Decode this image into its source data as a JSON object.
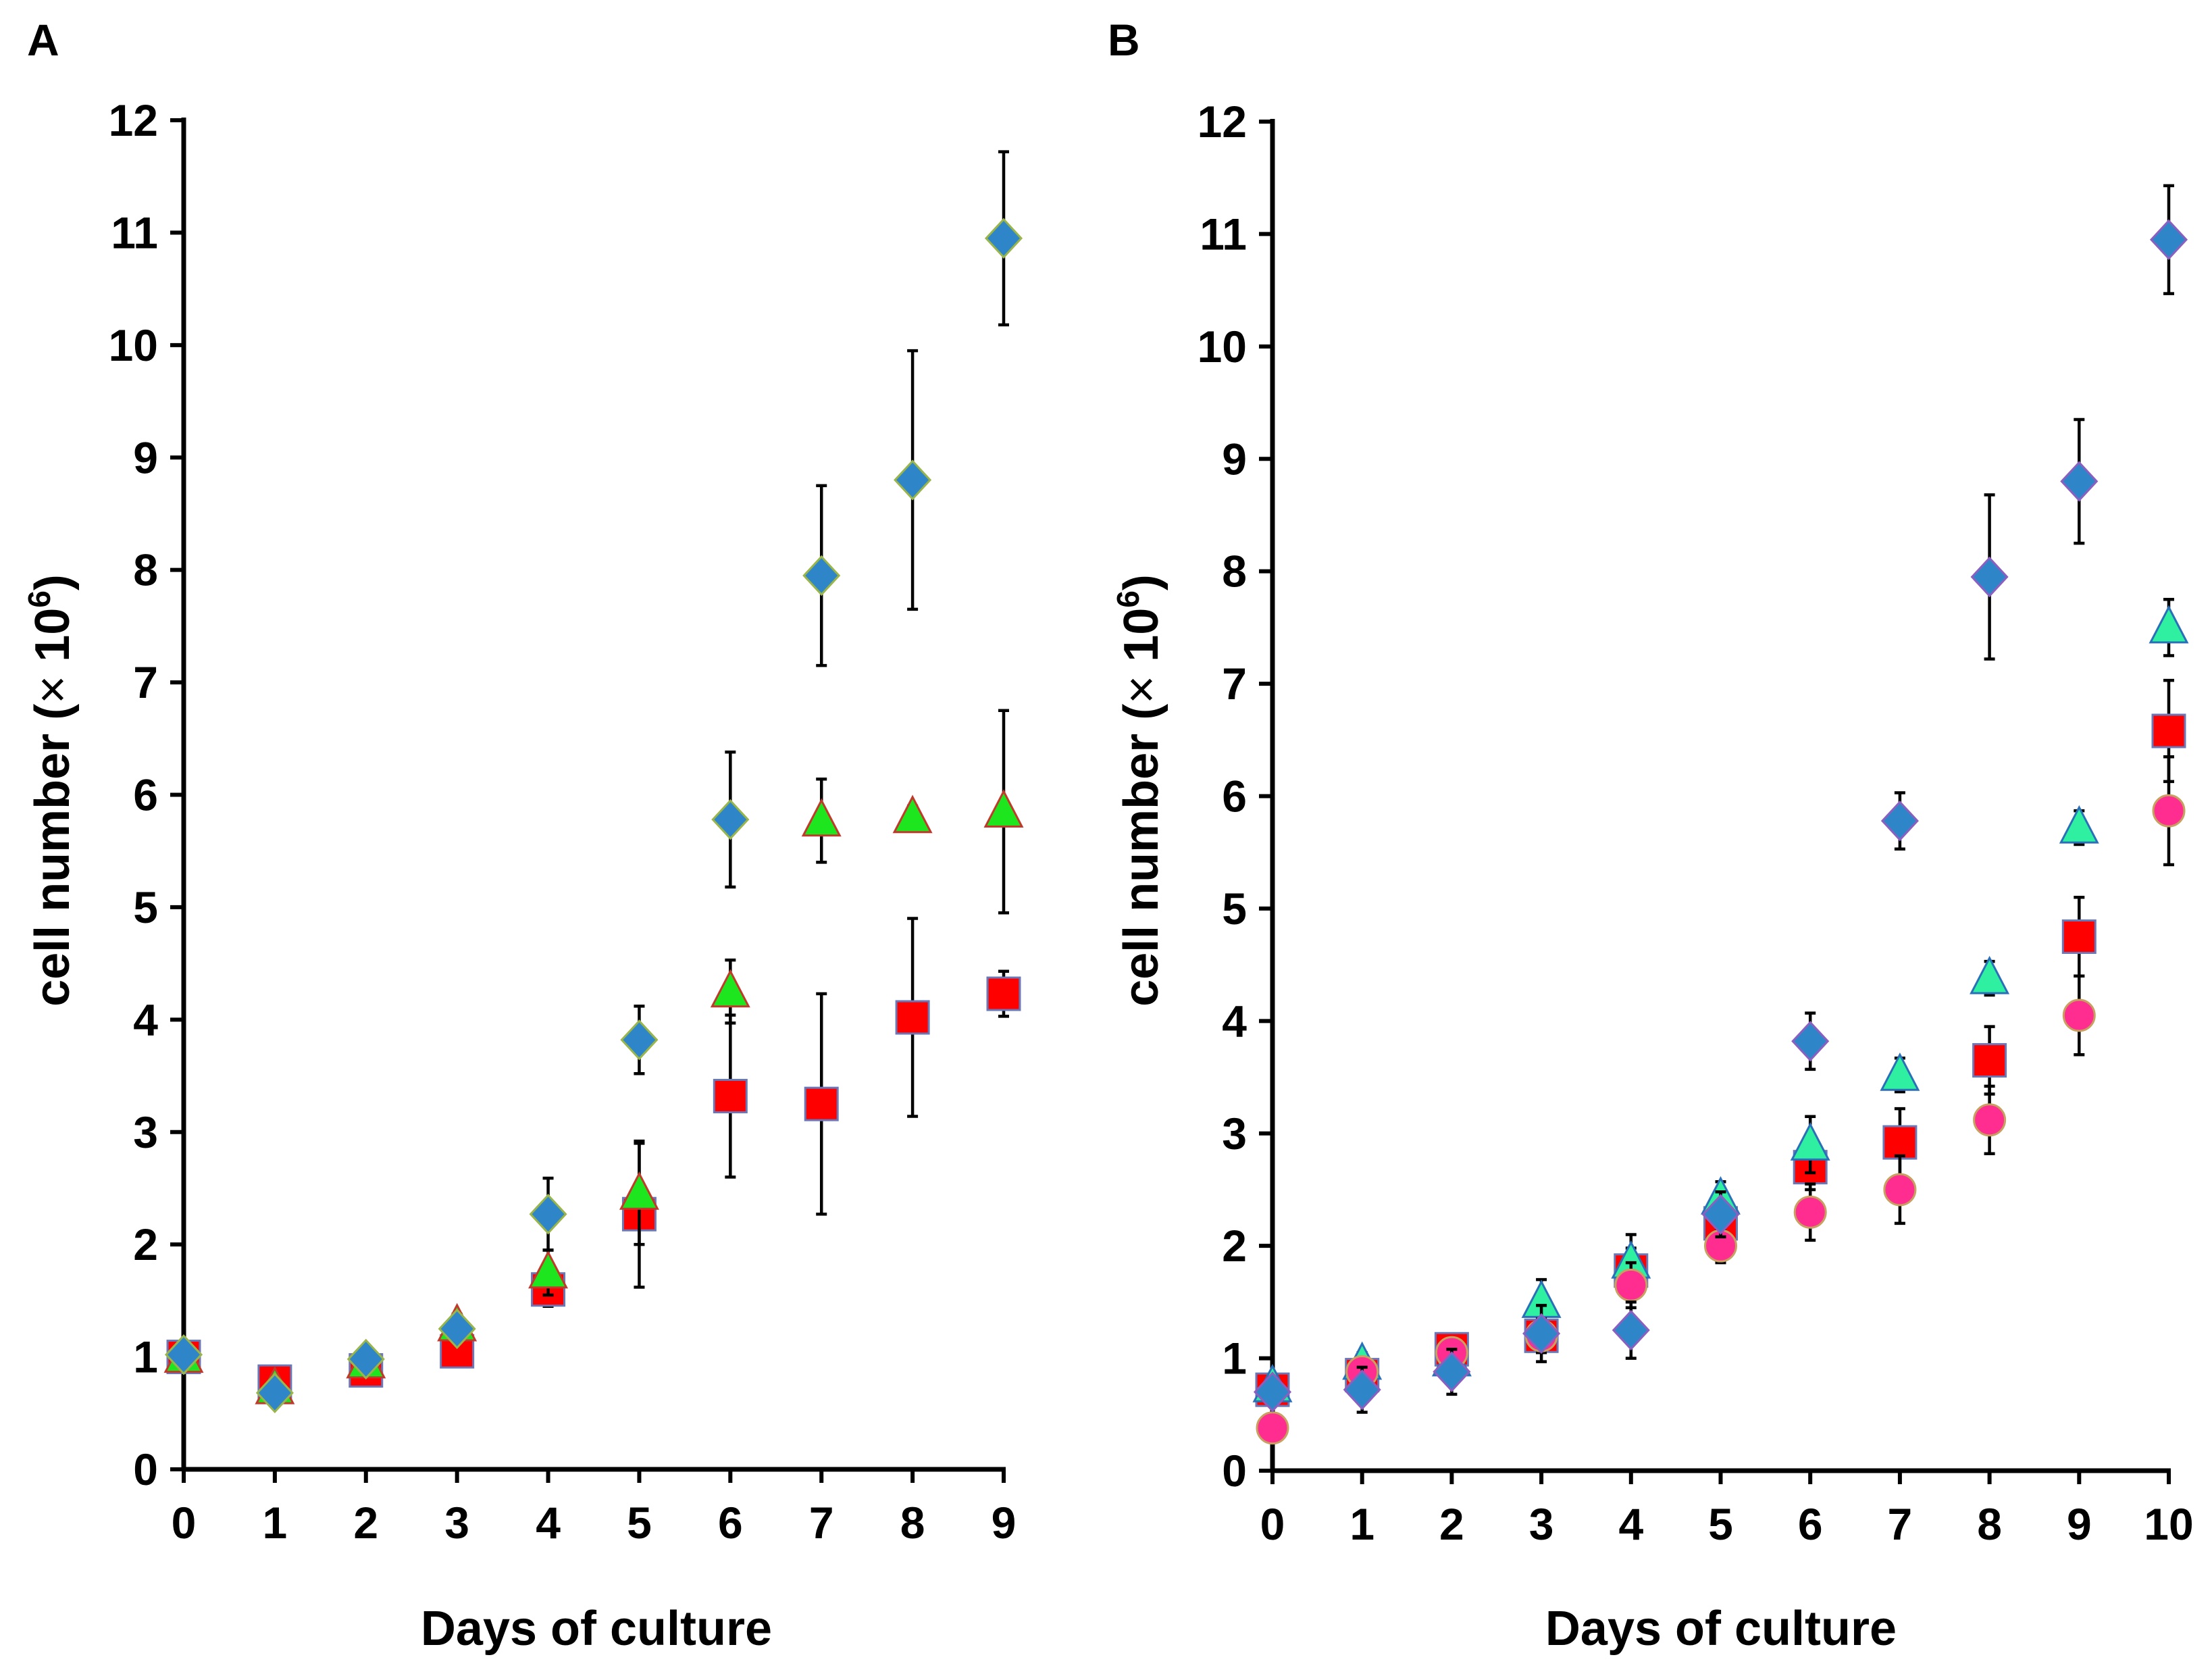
{
  "figure": {
    "colors": {
      "diamond": "#2e86c9",
      "triangle_A": "#1ee61e",
      "triangle_B": "#2ef0a0",
      "square": "#ff0000",
      "circle": "#ff2d8f"
    }
  },
  "chart_data": [
    {
      "panel": "A",
      "type": "scatter",
      "xlabel": "Days of culture",
      "ylabel": "cell number (× 10⁶)",
      "ylabel_main": "cell number (",
      "ylabel_times": "×",
      "ylabel_base": " 10",
      "ylabel_exp": "6",
      "ylabel_close": ")",
      "xlim": [
        0,
        9
      ],
      "ylim": [
        0,
        12
      ],
      "xticks": [
        0,
        1,
        2,
        3,
        4,
        5,
        6,
        7,
        8,
        9
      ],
      "yticks": [
        0,
        1,
        2,
        3,
        4,
        5,
        6,
        7,
        8,
        9,
        10,
        11,
        12
      ],
      "series": [
        {
          "marker": "square",
          "x": [
            0,
            1,
            2,
            3,
            4,
            5,
            6,
            7,
            8,
            9
          ],
          "y": [
            1.0,
            0.78,
            0.88,
            1.05,
            1.6,
            2.27,
            3.32,
            3.25,
            4.02,
            4.23
          ],
          "err": [
            0.05,
            0.05,
            0.08,
            0.08,
            0.15,
            0.65,
            0.72,
            0.98,
            0.88,
            0.2
          ]
        },
        {
          "marker": "triangle",
          "x": [
            0,
            1,
            2,
            3,
            4,
            5,
            6,
            7,
            8,
            9
          ],
          "y": [
            1.0,
            0.72,
            0.95,
            1.28,
            1.75,
            2.45,
            4.25,
            5.77,
            5.8,
            5.85
          ],
          "err": [
            0.05,
            0.05,
            0.12,
            0.1,
            0.2,
            0.45,
            0.28,
            0.37,
            0.1,
            0.9
          ]
        },
        {
          "marker": "diamond",
          "x": [
            0,
            1,
            2,
            3,
            4,
            5,
            6,
            7,
            8,
            9
          ],
          "y": [
            1.02,
            0.68,
            0.98,
            1.25,
            2.27,
            3.82,
            5.78,
            7.95,
            8.8,
            10.95
          ],
          "err": [
            0.05,
            0.05,
            0.1,
            0.08,
            0.32,
            0.3,
            0.6,
            0.8,
            1.15,
            0.77
          ]
        }
      ]
    },
    {
      "panel": "B",
      "type": "scatter",
      "xlabel": "Days of culture",
      "ylabel": "cell number (× 10⁶)",
      "ylabel_main": "cell number (",
      "ylabel_times": "×",
      "ylabel_base": " 10",
      "ylabel_exp": "6",
      "ylabel_close": ")",
      "xlim": [
        0,
        10
      ],
      "ylim": [
        0,
        12
      ],
      "xticks": [
        0,
        1,
        2,
        3,
        4,
        5,
        6,
        7,
        8,
        9,
        10
      ],
      "yticks": [
        0,
        1,
        2,
        3,
        4,
        5,
        6,
        7,
        8,
        9,
        10,
        11,
        12
      ],
      "series": [
        {
          "marker": "square",
          "x": [
            0,
            1,
            2,
            3,
            4,
            5,
            6,
            7,
            8,
            9,
            10
          ],
          "y": [
            0.72,
            0.85,
            1.08,
            1.2,
            1.78,
            2.2,
            2.7,
            2.92,
            3.65,
            4.75,
            6.58
          ],
          "err": [
            0.05,
            0.1,
            0.1,
            0.15,
            0.2,
            0.2,
            0.2,
            0.3,
            0.3,
            0.35,
            0.45
          ]
        },
        {
          "marker": "triangle",
          "x": [
            0,
            1,
            2,
            3,
            4,
            5,
            6,
            7,
            8,
            9,
            10
          ],
          "y": [
            0.75,
            0.95,
            0.98,
            1.5,
            1.85,
            2.42,
            2.9,
            3.52,
            4.38,
            5.72,
            7.5
          ],
          "err": [
            0.05,
            0.1,
            0.1,
            0.2,
            0.25,
            0.15,
            0.25,
            0.15,
            0.15,
            0.15,
            0.25
          ]
        },
        {
          "marker": "circle",
          "x": [
            0,
            1,
            2,
            3,
            4,
            5,
            6,
            7,
            8,
            9,
            10
          ],
          "y": [
            0.38,
            0.88,
            1.05,
            1.2,
            1.65,
            2.0,
            2.3,
            2.5,
            3.12,
            4.05,
            5.87
          ],
          "err": [
            0.05,
            0.1,
            0.1,
            0.15,
            0.2,
            0.15,
            0.25,
            0.3,
            0.3,
            0.35,
            0.48
          ]
        },
        {
          "marker": "diamond",
          "x": [
            0,
            1,
            2,
            3,
            4,
            5,
            6,
            7,
            8,
            9,
            10
          ],
          "y": [
            0.7,
            0.72,
            0.88,
            1.22,
            1.25,
            2.28,
            3.82,
            5.78,
            7.95,
            8.8,
            10.95
          ],
          "err": [
            0.05,
            0.2,
            0.2,
            0.25,
            0.25,
            0.2,
            0.25,
            0.25,
            0.73,
            0.55,
            0.48
          ]
        }
      ]
    }
  ]
}
